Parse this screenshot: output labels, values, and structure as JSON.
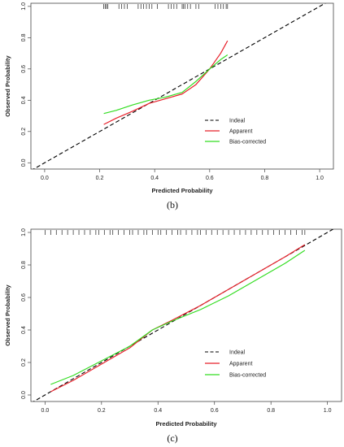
{
  "chart_data": [
    {
      "type": "line",
      "panel_label": "(b)",
      "xlabel": "Predicted Probability",
      "ylabel": "Observed Probability",
      "xlim": [
        -0.05,
        1.05
      ],
      "ylim": [
        -0.04,
        1.02
      ],
      "x_ticks": [
        "0.0",
        "0.2",
        "0.4",
        "0.6",
        "0.8",
        "1.0"
      ],
      "y_ticks": [
        "0.0",
        "0.2",
        "0.4",
        "0.6",
        "0.8",
        "1.0"
      ],
      "legend_position": "lower-right",
      "series": [
        {
          "name": "Indeal",
          "color": "#000000",
          "dash": true,
          "x": [
            -0.05,
            1.05
          ],
          "y": [
            -0.05,
            1.05
          ]
        },
        {
          "name": "Apparent",
          "color": "#e8202a",
          "dash": false,
          "x": [
            0.215,
            0.26,
            0.32,
            0.38,
            0.44,
            0.5,
            0.55,
            0.6,
            0.64,
            0.665
          ],
          "y": [
            0.245,
            0.285,
            0.33,
            0.38,
            0.41,
            0.44,
            0.5,
            0.6,
            0.7,
            0.78
          ]
        },
        {
          "name": "Bias-corrected",
          "color": "#33dd22",
          "dash": false,
          "x": [
            0.215,
            0.26,
            0.32,
            0.38,
            0.44,
            0.5,
            0.55,
            0.6,
            0.64,
            0.665
          ],
          "y": [
            0.315,
            0.335,
            0.37,
            0.4,
            0.42,
            0.45,
            0.52,
            0.6,
            0.66,
            0.69
          ]
        }
      ],
      "rug_x": [
        0.215,
        0.22,
        0.225,
        0.23,
        0.27,
        0.28,
        0.29,
        0.3,
        0.34,
        0.35,
        0.36,
        0.37,
        0.38,
        0.39,
        0.41,
        0.45,
        0.46,
        0.47,
        0.48,
        0.5,
        0.505,
        0.51,
        0.52,
        0.53,
        0.55,
        0.56,
        0.62,
        0.63,
        0.64,
        0.65,
        0.66,
        0.665
      ]
    },
    {
      "type": "line",
      "panel_label": "(c)",
      "xlabel": "Predicted Probability",
      "ylabel": "Observed Probability",
      "xlim": [
        -0.05,
        1.05
      ],
      "ylim": [
        -0.04,
        1.02
      ],
      "x_ticks": [
        "0.0",
        "0.2",
        "0.4",
        "0.6",
        "0.8",
        "1.0"
      ],
      "y_ticks": [
        "0.0",
        "0.2",
        "0.4",
        "0.6",
        "0.8",
        "1.0"
      ],
      "legend_position": "lower-right",
      "series": [
        {
          "name": "Indeal",
          "color": "#000000",
          "dash": true,
          "x": [
            -0.05,
            1.05
          ],
          "y": [
            -0.05,
            1.05
          ]
        },
        {
          "name": "Apparent",
          "color": "#e8202a",
          "dash": false,
          "x": [
            0.02,
            0.1,
            0.2,
            0.3,
            0.38,
            0.45,
            0.55,
            0.65,
            0.75,
            0.85,
            0.92
          ],
          "y": [
            0.02,
            0.09,
            0.19,
            0.29,
            0.4,
            0.46,
            0.55,
            0.65,
            0.75,
            0.85,
            0.925
          ]
        },
        {
          "name": "Bias-corrected",
          "color": "#33dd22",
          "dash": false,
          "x": [
            0.02,
            0.1,
            0.2,
            0.3,
            0.38,
            0.45,
            0.55,
            0.65,
            0.75,
            0.85,
            0.92
          ],
          "y": [
            0.065,
            0.12,
            0.21,
            0.3,
            0.4,
            0.455,
            0.525,
            0.61,
            0.71,
            0.81,
            0.89
          ]
        }
      ],
      "rug_x": [
        0.0,
        0.02,
        0.04,
        0.06,
        0.08,
        0.1,
        0.12,
        0.14,
        0.16,
        0.18,
        0.19,
        0.21,
        0.23,
        0.24,
        0.26,
        0.28,
        0.3,
        0.31,
        0.33,
        0.35,
        0.36,
        0.38,
        0.4,
        0.41,
        0.43,
        0.45,
        0.47,
        0.48,
        0.5,
        0.52,
        0.54,
        0.55,
        0.57,
        0.59,
        0.61,
        0.63,
        0.65,
        0.67,
        0.69,
        0.71,
        0.73,
        0.75,
        0.77,
        0.79,
        0.81,
        0.83,
        0.85,
        0.87,
        0.89,
        0.91,
        0.92
      ]
    }
  ]
}
